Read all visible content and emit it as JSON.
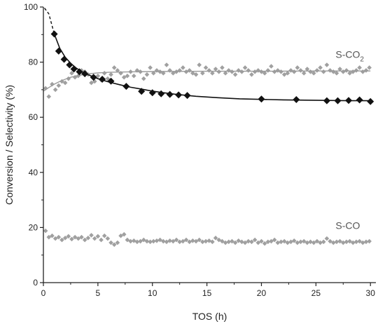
{
  "chart_data": {
    "type": "scatter",
    "xlabel": "TOS (h)",
    "ylabel": "Conversion / Selectivity (%)",
    "xlim": [
      0,
      30.5
    ],
    "ylim": [
      0,
      100
    ],
    "xticks": [
      "0",
      "5",
      "10",
      "15",
      "20",
      "25",
      "30"
    ],
    "yticks": [
      "0",
      "20",
      "40",
      "60",
      "80",
      "100"
    ],
    "grid": false,
    "series": [
      {
        "name": "",
        "kind": "conversion",
        "color": "#111111",
        "x": [
          1.0,
          1.4,
          1.9,
          2.4,
          2.8,
          3.3,
          3.8,
          4.6,
          5.4,
          6.2,
          7.6,
          9.0,
          10.0,
          10.8,
          11.6,
          12.4,
          13.2,
          20.0,
          23.2,
          26.0,
          27.0,
          28.0,
          29.0,
          30.0
        ],
        "y": [
          90.2,
          84.0,
          81.0,
          79.0,
          77.5,
          76.5,
          75.8,
          74.5,
          73.8,
          73.1,
          71.2,
          69.4,
          68.9,
          68.5,
          68.3,
          68.1,
          67.9,
          66.6,
          66.4,
          66.0,
          66.0,
          66.1,
          66.3,
          65.7
        ]
      },
      {
        "name": "S-CO₂",
        "kind": "selectivity-co2",
        "color": "#a0a0a0",
        "x": [
          0.2,
          0.5,
          0.8,
          1.1,
          1.4,
          1.7,
          2.0,
          2.3,
          2.6,
          2.9,
          3.2,
          3.5,
          3.8,
          4.1,
          4.4,
          4.7,
          5.0,
          5.3,
          5.6,
          5.9,
          6.2,
          6.5,
          6.8,
          7.1,
          7.4,
          7.7,
          8.0,
          8.3,
          8.6,
          8.9,
          9.2,
          9.5,
          9.8,
          10.1,
          10.4,
          10.7,
          11.0,
          11.3,
          11.6,
          11.9,
          12.2,
          12.5,
          12.8,
          13.1,
          13.4,
          13.7,
          14.0,
          14.3,
          14.6,
          14.9,
          15.2,
          15.5,
          15.8,
          16.1,
          16.4,
          16.7,
          17.0,
          17.3,
          17.6,
          17.9,
          18.2,
          18.5,
          18.8,
          19.1,
          19.4,
          19.7,
          20.0,
          20.3,
          20.6,
          20.9,
          21.2,
          21.5,
          21.8,
          22.1,
          22.4,
          22.7,
          23.0,
          23.3,
          23.6,
          23.9,
          24.2,
          24.5,
          24.8,
          25.1,
          25.4,
          25.7,
          26.0,
          26.3,
          26.6,
          26.9,
          27.2,
          27.5,
          27.8,
          28.1,
          28.4,
          28.7,
          29.0,
          29.3,
          29.6,
          29.9
        ],
        "y": [
          70.5,
          67.5,
          72.0,
          70.0,
          71.5,
          73.0,
          72.5,
          74.0,
          76.0,
          74.5,
          75.0,
          77.0,
          76.5,
          75.5,
          72.5,
          73.0,
          75.0,
          73.5,
          76.0,
          74.0,
          75.5,
          78.0,
          77.0,
          76.0,
          74.5,
          75.0,
          76.5,
          75.0,
          77.0,
          76.5,
          74.0,
          75.5,
          78.0,
          76.0,
          77.0,
          76.5,
          76.0,
          79.0,
          77.0,
          76.0,
          76.5,
          77.0,
          78.0,
          76.5,
          77.0,
          76.0,
          75.5,
          79.0,
          76.0,
          78.0,
          77.0,
          76.0,
          77.5,
          76.5,
          78.0,
          76.0,
          77.0,
          76.5,
          75.5,
          77.0,
          76.5,
          78.0,
          77.0,
          75.5,
          76.5,
          77.0,
          76.5,
          76.0,
          77.0,
          78.5,
          76.5,
          77.0,
          76.5,
          75.5,
          76.0,
          77.0,
          76.5,
          78.0,
          77.0,
          76.0,
          77.5,
          76.5,
          76.0,
          77.0,
          78.0,
          76.5,
          79.0,
          77.0,
          76.5,
          76.0,
          77.5,
          76.5,
          77.0,
          76.0,
          76.5,
          77.0,
          78.0,
          76.5,
          77.0,
          78.0
        ]
      },
      {
        "name": "S-CO",
        "kind": "selectivity-co",
        "color": "#a0a0a0",
        "x": [
          0.2,
          0.5,
          0.8,
          1.1,
          1.4,
          1.7,
          2.0,
          2.3,
          2.6,
          2.9,
          3.2,
          3.5,
          3.8,
          4.1,
          4.4,
          4.7,
          5.0,
          5.3,
          5.6,
          5.9,
          6.2,
          6.5,
          6.8,
          7.1,
          7.4,
          7.7,
          8.0,
          8.3,
          8.6,
          8.9,
          9.2,
          9.5,
          9.8,
          10.1,
          10.4,
          10.7,
          11.0,
          11.3,
          11.6,
          11.9,
          12.2,
          12.5,
          12.8,
          13.1,
          13.4,
          13.7,
          14.0,
          14.3,
          14.6,
          14.9,
          15.2,
          15.5,
          15.8,
          16.1,
          16.4,
          16.7,
          17.0,
          17.3,
          17.6,
          17.9,
          18.2,
          18.5,
          18.8,
          19.1,
          19.4,
          19.7,
          20.0,
          20.3,
          20.6,
          20.9,
          21.2,
          21.5,
          21.8,
          22.1,
          22.4,
          22.7,
          23.0,
          23.3,
          23.6,
          23.9,
          24.2,
          24.5,
          24.8,
          25.1,
          25.4,
          25.7,
          26.0,
          26.3,
          26.6,
          26.9,
          27.2,
          27.5,
          27.8,
          28.1,
          28.4,
          28.7,
          29.0,
          29.3,
          29.6,
          29.9
        ],
        "y": [
          18.8,
          16.5,
          17.0,
          16.0,
          16.5,
          15.5,
          16.2,
          16.8,
          15.8,
          16.5,
          16.0,
          16.5,
          15.5,
          16.2,
          17.2,
          16.0,
          16.8,
          15.5,
          17.0,
          16.0,
          14.5,
          13.8,
          14.5,
          17.0,
          17.5,
          15.5,
          15.0,
          15.2,
          14.8,
          15.0,
          15.5,
          15.0,
          14.8,
          15.0,
          15.2,
          15.5,
          15.0,
          14.8,
          15.2,
          15.0,
          15.5,
          14.8,
          15.0,
          15.5,
          14.8,
          15.2,
          15.0,
          15.5,
          14.8,
          15.0,
          15.2,
          14.8,
          16.2,
          15.5,
          15.0,
          14.5,
          14.8,
          15.0,
          14.5,
          15.2,
          14.8,
          14.5,
          15.0,
          14.8,
          15.5,
          14.5,
          15.0,
          14.2,
          14.8,
          15.0,
          15.5,
          14.5,
          14.8,
          15.0,
          14.5,
          14.8,
          15.2,
          14.5,
          14.8,
          15.0,
          14.5,
          14.8,
          14.5,
          15.0,
          14.5,
          14.8,
          16.0,
          15.0,
          14.5,
          14.8,
          15.0,
          14.5,
          14.8,
          15.0,
          14.5,
          14.8,
          15.0,
          14.5,
          14.8,
          15.0
        ]
      }
    ],
    "fits": {
      "conversion": [
        [
          0.1,
          99.6
        ],
        [
          0.5,
          97.5
        ],
        [
          1.0,
          90.2
        ],
        [
          1.5,
          85.0
        ],
        [
          2.0,
          81.8
        ],
        [
          2.5,
          79.6
        ],
        [
          3.0,
          77.9
        ],
        [
          3.5,
          76.6
        ],
        [
          4.0,
          75.6
        ],
        [
          5.0,
          74.0
        ],
        [
          6.0,
          72.8
        ],
        [
          7.0,
          71.8
        ],
        [
          8.0,
          70.9
        ],
        [
          9.0,
          70.2
        ],
        [
          10.0,
          69.5
        ],
        [
          11.0,
          68.9
        ],
        [
          12.0,
          68.4
        ],
        [
          13.0,
          68.0
        ],
        [
          14.0,
          67.6
        ],
        [
          16.0,
          67.1
        ],
        [
          18.0,
          66.7
        ],
        [
          20.0,
          66.5
        ],
        [
          22.0,
          66.3
        ],
        [
          24.0,
          66.2
        ],
        [
          26.0,
          66.1
        ],
        [
          28.0,
          66.0
        ],
        [
          30.0,
          66.0
        ]
      ],
      "selectivity-co2": [
        [
          0.0,
          69.5
        ],
        [
          0.5,
          70.8
        ],
        [
          1.0,
          72.0
        ],
        [
          1.5,
          73.0
        ],
        [
          2.0,
          73.8
        ],
        [
          2.5,
          74.5
        ],
        [
          3.0,
          75.0
        ],
        [
          4.0,
          75.7
        ],
        [
          5.0,
          76.1
        ],
        [
          6.0,
          76.3
        ],
        [
          8.0,
          76.5
        ],
        [
          10.0,
          76.6
        ],
        [
          15.0,
          76.7
        ],
        [
          20.0,
          76.7
        ],
        [
          25.0,
          76.8
        ],
        [
          30.0,
          76.8
        ]
      ]
    },
    "fit_dashed_until": 1.0,
    "annotations": [
      {
        "text": "S-CO",
        "sub": "2",
        "x": 26.8,
        "y": 81.5
      },
      {
        "text": "S-CO",
        "sub": "",
        "x": 26.8,
        "y": 19.5
      }
    ]
  }
}
